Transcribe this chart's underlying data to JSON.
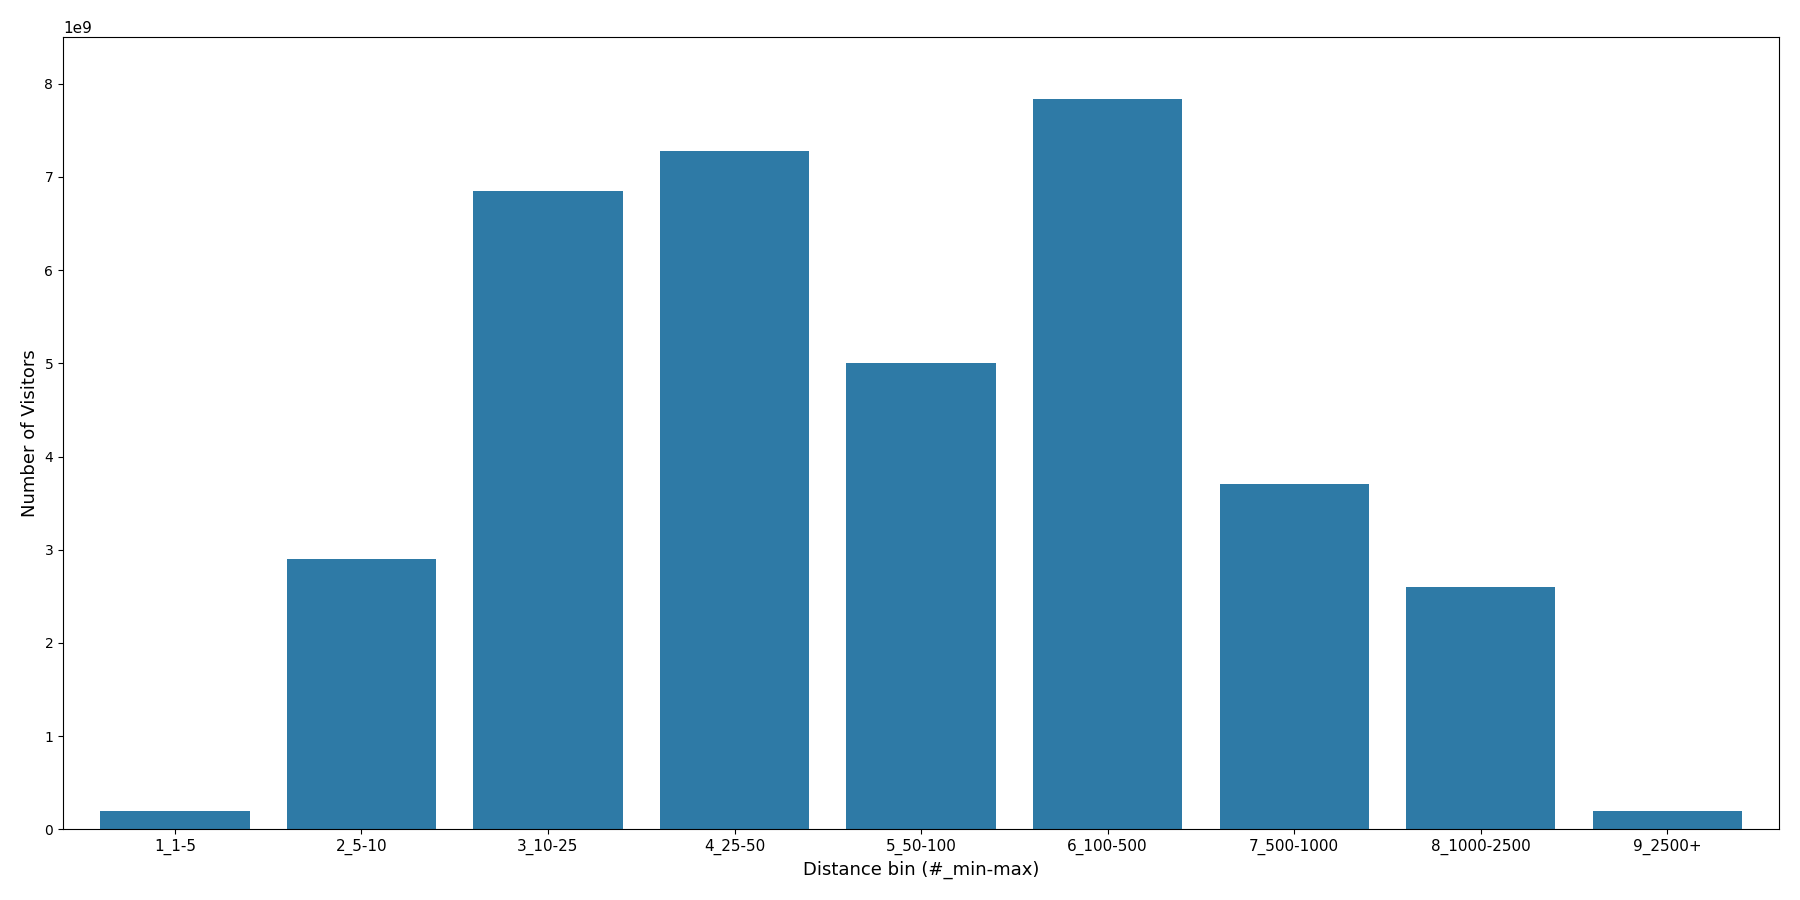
{
  "categories": [
    "1_1-5",
    "2_5-10",
    "3_10-25",
    "4_25-50",
    "5_50-100",
    "6_100-500",
    "7_500-1000",
    "8_1000-2500",
    "9_2500+"
  ],
  "values": [
    200000000,
    2900000000,
    6850000000,
    7280000000,
    5000000000,
    7830000000,
    3700000000,
    2600000000,
    200000000
  ],
  "bar_color": "#2e7aa6",
  "title": "",
  "xlabel": "Distance bin (#_min-max)",
  "ylabel": "Number of Visitors",
  "ylim": [
    0,
    8500000000
  ],
  "background_color": "#ffffff",
  "xlabel_fontsize": 13,
  "ylabel_fontsize": 13,
  "tick_fontsize": 11,
  "bar_width": 0.8,
  "figsize": [
    18.0,
    9.0
  ],
  "dpi": 100
}
